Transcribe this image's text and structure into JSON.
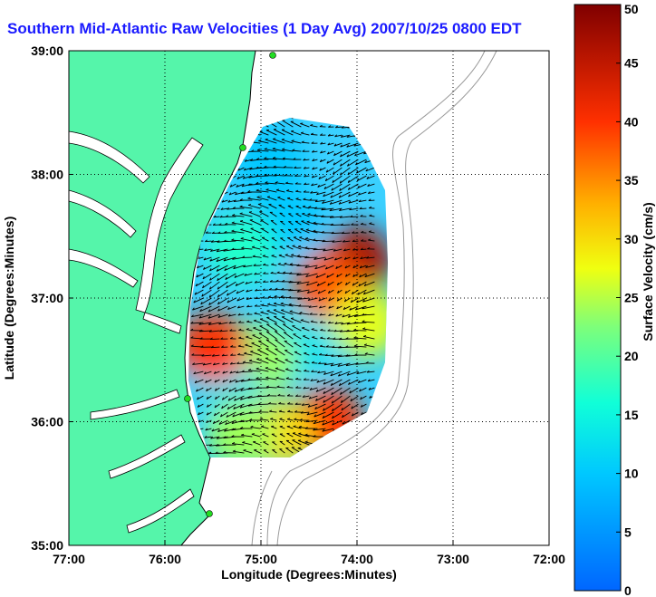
{
  "title": "Southern Mid-Atlantic Raw Velocities (1 Day Avg) 2007/10/25 0800 EDT",
  "chart_data": {
    "type": "heatmap",
    "xlabel": "Longitude (Degrees:Minutes)",
    "ylabel": "Latitude (Degrees:Minutes)",
    "xlim": [
      -77,
      -72
    ],
    "ylim": [
      35,
      39
    ],
    "x_ticks": [
      {
        "value": -77,
        "label": "77:00"
      },
      {
        "value": -76,
        "label": "76:00"
      },
      {
        "value": -75,
        "label": "75:00"
      },
      {
        "value": -74,
        "label": "74:00"
      },
      {
        "value": -73,
        "label": "73:00"
      },
      {
        "value": -72,
        "label": "72:00"
      }
    ],
    "y_ticks": [
      {
        "value": 35,
        "label": "35:00"
      },
      {
        "value": 36,
        "label": "36:00"
      },
      {
        "value": 37,
        "label": "37:00"
      },
      {
        "value": 38,
        "label": "38:00"
      },
      {
        "value": 39,
        "label": "39:00"
      }
    ],
    "grid": true,
    "colorbar": {
      "label": "Surface Velocity (cm/s)",
      "range": [
        0,
        50
      ],
      "ticks": [
        0,
        5,
        10,
        15,
        20,
        25,
        30,
        35,
        40,
        45,
        50
      ],
      "placement": "right"
    },
    "velocity_field": {
      "lon_range": [
        -75.6,
        -73.75
      ],
      "lat_range": [
        35.7,
        38.45
      ],
      "speed_regions": [
        {
          "lon": -74.7,
          "lat": 37.6,
          "speed_cm_s": 10
        },
        {
          "lon": -74.9,
          "lat": 38.1,
          "speed_cm_s": 10
        },
        {
          "lon": -75.2,
          "lat": 37.4,
          "speed_cm_s": 17
        },
        {
          "lon": -74.0,
          "lat": 37.3,
          "speed_cm_s": 47
        },
        {
          "lon": -74.3,
          "lat": 37.1,
          "speed_cm_s": 38
        },
        {
          "lon": -73.9,
          "lat": 36.8,
          "speed_cm_s": 27
        },
        {
          "lon": -74.6,
          "lat": 36.6,
          "speed_cm_s": 13
        },
        {
          "lon": -75.0,
          "lat": 36.5,
          "speed_cm_s": 24
        },
        {
          "lon": -75.4,
          "lat": 36.3,
          "speed_cm_s": 12
        },
        {
          "lon": -75.5,
          "lat": 36.6,
          "speed_cm_s": 40
        },
        {
          "lon": -74.3,
          "lat": 36.0,
          "speed_cm_s": 40
        },
        {
          "lon": -74.8,
          "lat": 35.9,
          "speed_cm_s": 30
        },
        {
          "lon": -75.2,
          "lat": 35.9,
          "speed_cm_s": 24
        }
      ]
    },
    "colors": {
      "land": "#55f5aa",
      "coast": "#000000",
      "bathymetry": "#9a9a9a",
      "station": "#22dd22",
      "title": "#1a1aff"
    }
  }
}
